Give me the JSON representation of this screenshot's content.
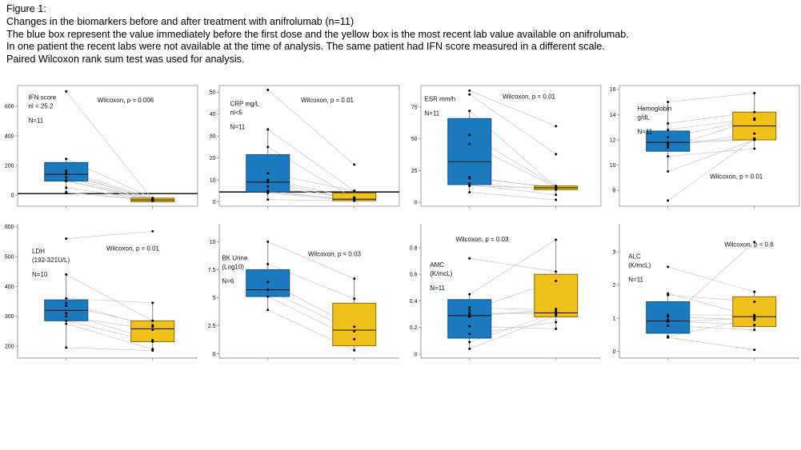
{
  "header": {
    "lines": [
      "Figure 1:",
      "Changes in the biomarkers before and after treatment with anifrolumab (n=11)",
      "The blue box represent the value immediately before the first dose and the yellow box is the most recent lab value available on anifrolumab.",
      "In one patient the recent labs were not available at the time of analysis. The same patient had IFN score measured in a different scale.",
      "Paired Wilcoxon rank sum test was used for analysis."
    ]
  },
  "colors": {
    "before_fill": "#1b79c0",
    "before_edge": "#0f558c",
    "after_fill": "#f0c11a",
    "after_edge": "#8a6d05",
    "median_line": "#1a1a1a",
    "pair_line": "#c9c9c9",
    "point": "#000000",
    "panel_border": "#aaaaaa",
    "axis_line": "#999999",
    "ref_line": "#1a1a1a",
    "text": "#111111"
  },
  "chart_data": [
    {
      "id": "ifn-score",
      "type": "paired-box",
      "row": 0,
      "col": 0,
      "title_lines": [
        "IFN score",
        "nl < 25.2"
      ],
      "n_label": "N=11",
      "p_label": "Wilcoxon, p = 0.006",
      "ylim": [
        -75,
        740
      ],
      "yticks": [
        0,
        200,
        400,
        600
      ],
      "ref_line": 10,
      "before": {
        "q1": 95,
        "median": 140,
        "q3": 220,
        "whisker_low": 15,
        "whisker_high": 245
      },
      "after": {
        "q1": -45,
        "median": -33,
        "q3": -20,
        "whisker_low": -48,
        "whisker_high": -15
      },
      "pairs": [
        [
          700,
          -30
        ],
        [
          245,
          -20
        ],
        [
          165,
          -25
        ],
        [
          150,
          -33
        ],
        [
          140,
          -28
        ],
        [
          120,
          -35
        ],
        [
          100,
          -30
        ],
        [
          95,
          -38
        ],
        [
          50,
          -33
        ],
        [
          20,
          -40
        ],
        [
          15,
          -30
        ]
      ],
      "label_xy": [
        0.06,
        0.115
      ],
      "p_xy": [
        0.6,
        0.14
      ]
    },
    {
      "id": "crp",
      "type": "paired-box",
      "row": 0,
      "col": 1,
      "title_lines": [
        "CRP mg/L",
        "nl<5"
      ],
      "n_label": "N=11",
      "p_label": "Wilcoxon, p = 0.01",
      "ylim": [
        -2,
        53
      ],
      "yticks": [
        0,
        10,
        20,
        30,
        40,
        50
      ],
      "ref_line": 4.5,
      "before": {
        "q1": 4.5,
        "median": 9,
        "q3": 21.5,
        "whisker_low": 1,
        "whisker_high": 33
      },
      "after": {
        "q1": 0.5,
        "median": 1.2,
        "q3": 4,
        "whisker_low": 0.3,
        "whisker_high": 5
      },
      "pairs": [
        [
          51,
          17
        ],
        [
          33,
          5
        ],
        [
          25,
          1.5
        ],
        [
          13,
          5
        ],
        [
          10,
          2
        ],
        [
          9,
          1
        ],
        [
          7,
          1.5
        ],
        [
          5,
          0.8
        ],
        [
          4.5,
          1
        ],
        [
          4,
          0.5
        ],
        [
          1,
          0.5
        ]
      ],
      "label_xy": [
        0.06,
        0.17
      ],
      "p_xy": [
        0.6,
        0.14
      ]
    },
    {
      "id": "esr",
      "type": "paired-box",
      "row": 0,
      "col": 2,
      "title_lines": [
        "ESR mm/h"
      ],
      "n_label": "N=11",
      "p_label": "Wilcoxon, p = 0.01",
      "ylim": [
        -3,
        92
      ],
      "yticks": [
        0,
        25,
        50,
        75
      ],
      "ref_line": null,
      "before": {
        "q1": 14,
        "median": 32,
        "q3": 66,
        "whisker_low": 8,
        "whisker_high": 72
      },
      "after": {
        "q1": 10,
        "median": 11.5,
        "q3": 13,
        "whisker_low": 6,
        "whisker_high": 14
      },
      "pairs": [
        [
          88,
          60
        ],
        [
          85,
          38
        ],
        [
          72,
          12
        ],
        [
          53,
          13
        ],
        [
          46,
          12
        ],
        [
          20,
          11
        ],
        [
          19,
          12
        ],
        [
          15,
          10
        ],
        [
          13,
          11
        ],
        [
          14,
          6
        ],
        [
          8,
          2
        ]
      ],
      "label_xy": [
        0.02,
        0.13
      ],
      "p_xy": [
        0.6,
        0.11
      ]
    },
    {
      "id": "hemoglobin",
      "type": "paired-box",
      "row": 0,
      "col": 3,
      "title_lines": [
        "Hemoglobin",
        "g/dL"
      ],
      "n_label": "N=11",
      "p_label": "Wilcoxon, p = 0.01",
      "ylim": [
        6.75,
        16.3
      ],
      "yticks": [
        8,
        10,
        12,
        14,
        16
      ],
      "ref_line": null,
      "before": {
        "q1": 11.1,
        "median": 11.8,
        "q3": 12.7,
        "whisker_low": 9.5,
        "whisker_high": 15.0
      },
      "after": {
        "q1": 12.0,
        "median": 13.1,
        "q3": 14.2,
        "whisker_low": 11.3,
        "whisker_high": 15.7
      },
      "pairs": [
        [
          15.0,
          15.7
        ],
        [
          13.3,
          14.2
        ],
        [
          12.8,
          13.7
        ],
        [
          12.2,
          13.6
        ],
        [
          11.8,
          12.1
        ],
        [
          11.7,
          12.0
        ],
        [
          11.5,
          12.5
        ],
        [
          11.4,
          13.6
        ],
        [
          10.7,
          11.3
        ],
        [
          9.5,
          12.0
        ],
        [
          7.2,
          12.1
        ]
      ],
      "label_xy": [
        0.1,
        0.21
      ],
      "p_xy": [
        0.65,
        0.77
      ]
    },
    {
      "id": "ldh",
      "type": "paired-box",
      "row": 1,
      "col": 0,
      "title_lines": [
        "LDH",
        "(192-321U/L)"
      ],
      "n_label": "N=10",
      "p_label": "Wilcoxon, p = 0.01",
      "ylim": [
        160,
        610
      ],
      "yticks": [
        200,
        300,
        400,
        500,
        600
      ],
      "ref_line": null,
      "before": {
        "q1": 285,
        "median": 320,
        "q3": 355,
        "whisker_low": 195,
        "whisker_high": 440
      },
      "after": {
        "q1": 215,
        "median": 258,
        "q3": 285,
        "whisker_low": 185,
        "whisker_high": 345
      },
      "pairs": [
        [
          560,
          585
        ],
        [
          440,
          285
        ],
        [
          360,
          345
        ],
        [
          345,
          265
        ],
        [
          335,
          270
        ],
        [
          310,
          220
        ],
        [
          300,
          255
        ],
        [
          285,
          215
        ],
        [
          275,
          190
        ],
        [
          195,
          185
        ]
      ],
      "label_xy": [
        0.08,
        0.22
      ],
      "p_xy": [
        0.64,
        0.2
      ]
    },
    {
      "id": "bk-urine",
      "type": "paired-box",
      "row": 1,
      "col": 1,
      "title_lines": [
        "BK Urine",
        "(Log10)"
      ],
      "n_label": "N=6",
      "p_label": "Wilcoxon, p = 0.03",
      "ylim": [
        -0.4,
        11.6
      ],
      "yticks": [
        0,
        2.5,
        5,
        7.5,
        10
      ],
      "ref_line": null,
      "before": {
        "q1": 5.1,
        "median": 5.7,
        "q3": 7.5,
        "whisker_low": 3.9,
        "whisker_high": 10
      },
      "after": {
        "q1": 0.7,
        "median": 2.1,
        "q3": 4.5,
        "whisker_low": 0.3,
        "whisker_high": 6.7
      },
      "pairs": [
        [
          10,
          6.7
        ],
        [
          8.0,
          4.9
        ],
        [
          6.4,
          2.4
        ],
        [
          5.7,
          2.0
        ],
        [
          5.1,
          1.3
        ],
        [
          3.9,
          0.3
        ]
      ],
      "label_xy": [
        0.015,
        0.27
      ],
      "p_xy": [
        0.64,
        0.24
      ]
    },
    {
      "id": "amc",
      "type": "paired-box",
      "row": 1,
      "col": 2,
      "title_lines": [
        "AMC",
        "(K/mcL)"
      ],
      "n_label": "N=11",
      "p_label": "Wilcoxon, p = 0.03",
      "ylim": [
        -0.03,
        0.98
      ],
      "yticks": [
        0,
        0.2,
        0.4,
        0.6,
        0.8
      ],
      "ref_line": null,
      "before": {
        "q1": 0.12,
        "median": 0.29,
        "q3": 0.41,
        "whisker_low": 0.04,
        "whisker_high": 0.45
      },
      "after": {
        "q1": 0.28,
        "median": 0.31,
        "q3": 0.6,
        "whisker_low": 0.19,
        "whisker_high": 0.86
      },
      "pairs": [
        [
          0.72,
          0.62
        ],
        [
          0.45,
          0.86
        ],
        [
          0.35,
          0.33
        ],
        [
          0.33,
          0.55
        ],
        [
          0.31,
          0.3
        ],
        [
          0.3,
          0.32
        ],
        [
          0.28,
          0.34
        ],
        [
          0.21,
          0.19
        ],
        [
          0.15,
          0.24
        ],
        [
          0.09,
          0.31
        ],
        [
          0.04,
          0.29
        ]
      ],
      "label_xy": [
        0.05,
        0.32
      ],
      "p_xy": [
        0.34,
        0.13
      ]
    },
    {
      "id": "alc",
      "type": "paired-box",
      "row": 1,
      "col": 3,
      "title_lines": [
        "ALC",
        "(K/mcL)"
      ],
      "n_label": "N=11",
      "p_label": "Wilcoxon, p = 0.6",
      "ylim": [
        -0.2,
        3.85
      ],
      "yticks": [
        0,
        1,
        2,
        3
      ],
      "ref_line": null,
      "before": {
        "q1": 0.55,
        "median": 0.92,
        "q3": 1.5,
        "whisker_low": 0.42,
        "whisker_high": 1.75
      },
      "after": {
        "q1": 0.75,
        "median": 1.05,
        "q3": 1.65,
        "whisker_low": 0.65,
        "whisker_high": 1.8
      },
      "pairs": [
        [
          0.95,
          3.3
        ],
        [
          2.55,
          1.8
        ],
        [
          1.75,
          1.05
        ],
        [
          1.7,
          1.5
        ],
        [
          1.1,
          1.1
        ],
        [
          1.05,
          0.95
        ],
        [
          0.92,
          0.8
        ],
        [
          0.9,
          1.0
        ],
        [
          0.78,
          0.65
        ],
        [
          0.45,
          1.0
        ],
        [
          0.42,
          0.05
        ]
      ],
      "label_xy": [
        0.05,
        0.26
      ],
      "p_xy": [
        0.72,
        0.17
      ]
    }
  ]
}
